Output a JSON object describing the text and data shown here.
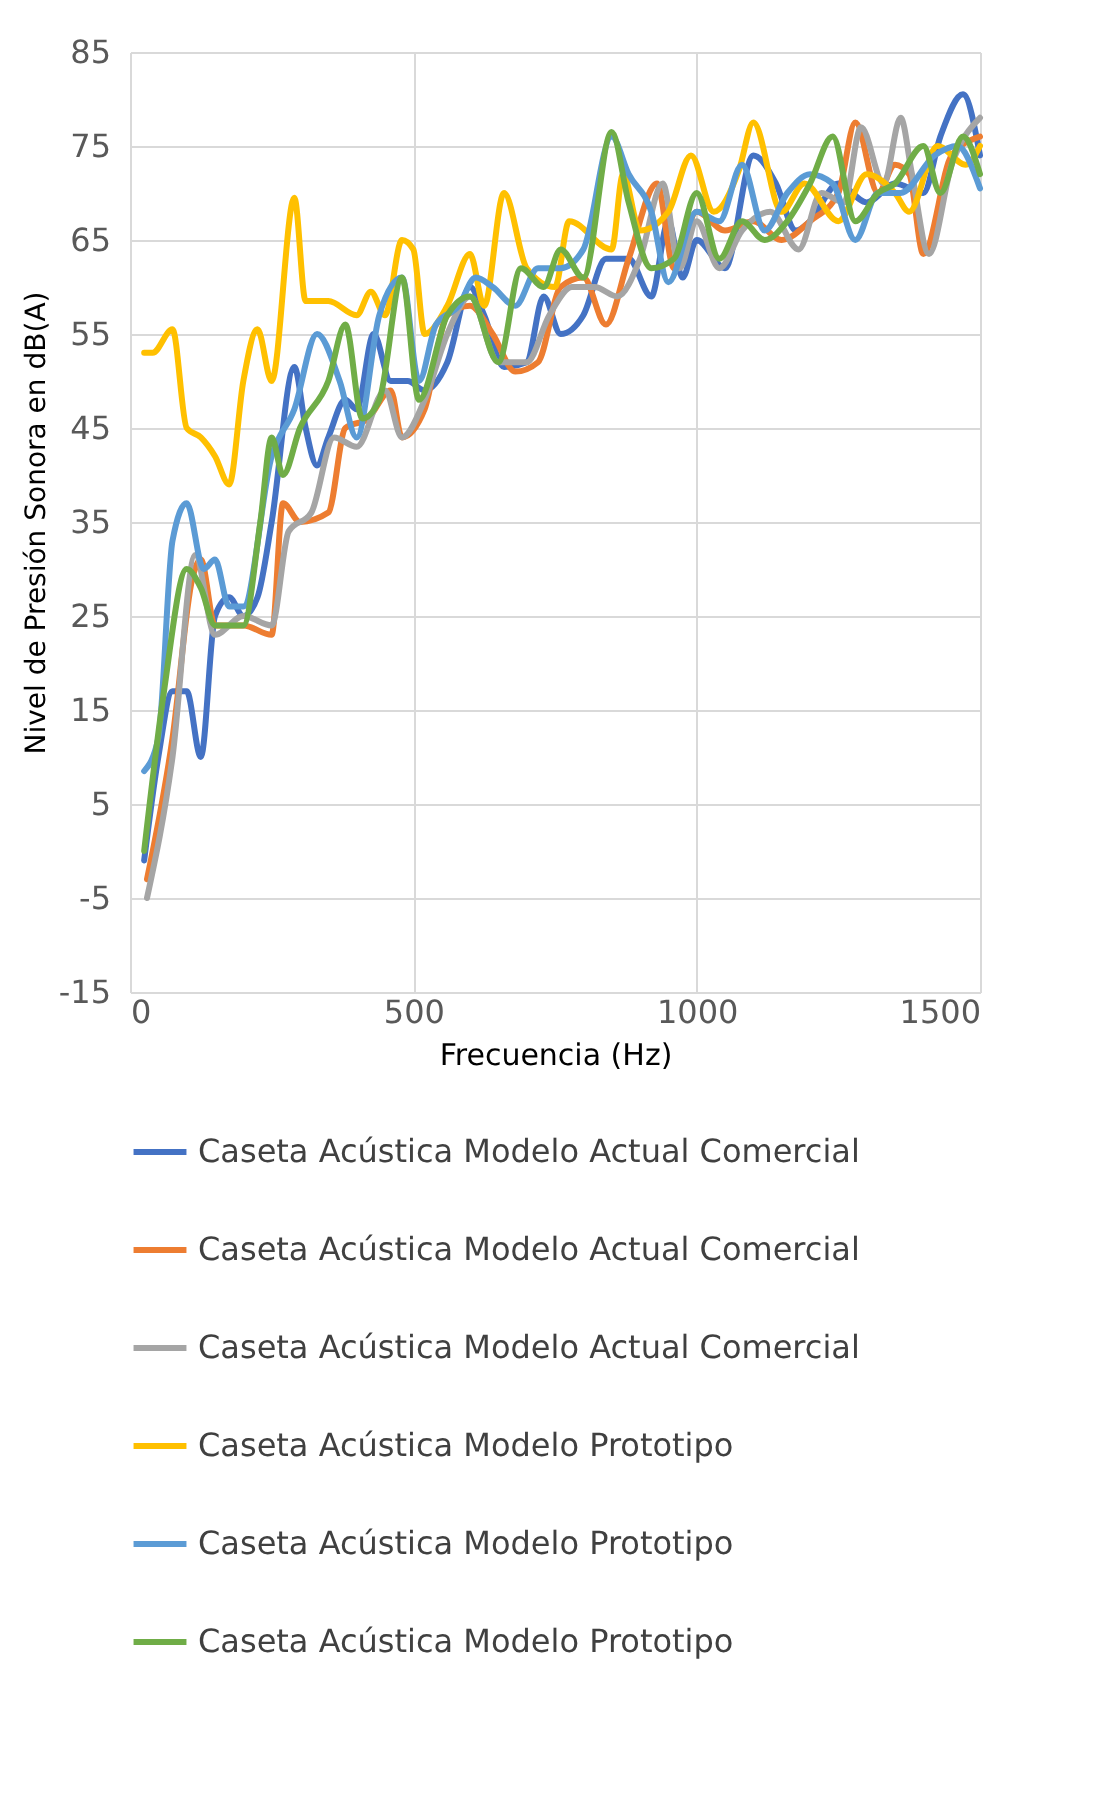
{
  "chart_data": {
    "type": "line",
    "xlabel": "Frecuencia (Hz)",
    "ylabel": "Nivel de Presión Sonora en dB(A)",
    "xlim": [
      0,
      1500
    ],
    "xticks": [
      0,
      500,
      1000,
      1500
    ],
    "ylim": [
      -15,
      85
    ],
    "yticks": [
      -15,
      -5,
      5,
      15,
      25,
      35,
      45,
      55,
      65,
      75,
      85
    ],
    "grid": true,
    "legend": "bottom",
    "marker": "none",
    "line_style": "solid",
    "series": [
      {
        "name": "Caseta Acústica Modelo Actual Comercial",
        "color": "#4472c4",
        "x": [
          25,
          50,
          75,
          100,
          125,
          150,
          175,
          200,
          225,
          250,
          290,
          310,
          330,
          350,
          380,
          400,
          430,
          460,
          490,
          520,
          560,
          600,
          625,
          660,
          700,
          730,
          760,
          800,
          840,
          880,
          920,
          950,
          975,
          1000,
          1050,
          1100,
          1140,
          1175,
          1200,
          1250,
          1300,
          1350,
          1400,
          1430,
          1470,
          1500
        ],
        "values": [
          -1,
          10,
          17,
          17,
          10,
          25,
          27,
          25,
          27,
          35,
          51.5,
          45,
          41,
          44,
          48,
          47,
          55,
          50,
          50,
          49,
          52,
          60,
          57,
          51.5,
          52,
          59,
          55,
          57,
          63,
          63,
          59,
          67,
          61,
          65,
          62,
          74,
          71,
          66,
          67,
          71,
          69,
          71,
          70,
          76,
          80.5,
          74
        ]
      },
      {
        "name": "Caseta Acústica Modelo Actual Comercial",
        "color": "#ed7d31",
        "x": [
          30,
          75,
          110,
          125,
          150,
          200,
          250,
          270,
          300,
          350,
          380,
          420,
          460,
          480,
          520,
          560,
          600,
          640,
          680,
          720,
          760,
          800,
          840,
          880,
          930,
          960,
          1000,
          1050,
          1100,
          1150,
          1200,
          1250,
          1280,
          1320,
          1350,
          1375,
          1400,
          1450,
          1500
        ],
        "values": [
          -3,
          12,
          29,
          31,
          24,
          24,
          23,
          37,
          35,
          36,
          45,
          46,
          49,
          44,
          47,
          57,
          58,
          55,
          51,
          52,
          60,
          61,
          56,
          63,
          71,
          62,
          68,
          66,
          67,
          65,
          67,
          70,
          77.5,
          70,
          73,
          72,
          63.5,
          74,
          76
        ]
      },
      {
        "name": "Caseta Acústica Modelo Actual Comercial",
        "color": "#a5a5a5",
        "x": [
          30,
          75,
          115,
          150,
          200,
          250,
          280,
          320,
          360,
          400,
          450,
          480,
          520,
          560,
          600,
          650,
          700,
          740,
          780,
          820,
          860,
          900,
          940,
          970,
          1000,
          1040,
          1080,
          1130,
          1180,
          1220,
          1260,
          1290,
          1330,
          1360,
          1380,
          1410,
          1450,
          1500
        ],
        "values": [
          -5,
          10,
          31.5,
          23,
          25,
          24,
          34,
          36,
          44,
          43,
          49,
          44,
          48,
          55,
          59,
          52,
          52,
          57,
          60,
          60,
          59,
          63,
          71,
          62,
          67,
          62,
          66,
          68,
          64,
          70,
          69,
          77,
          71,
          78,
          72,
          63.5,
          73,
          78
        ]
      },
      {
        "name": "Caseta Acústica Modelo Prototipo",
        "color": "#ffc000",
        "x": [
          25,
          40,
          75,
          100,
          125,
          150,
          175,
          200,
          225,
          250,
          290,
          310,
          350,
          400,
          425,
          450,
          480,
          500,
          520,
          560,
          600,
          625,
          660,
          700,
          750,
          775,
          850,
          870,
          900,
          950,
          990,
          1030,
          1075,
          1100,
          1150,
          1190,
          1250,
          1300,
          1350,
          1375,
          1425,
          1475,
          1500
        ],
        "values": [
          53,
          53,
          55.5,
          45,
          44,
          42,
          39,
          50,
          55.5,
          50,
          69.5,
          58.5,
          58.5,
          57,
          59.5,
          57,
          65,
          64,
          55,
          58,
          63.5,
          58,
          70,
          62,
          60,
          67,
          64,
          72,
          66,
          68,
          74,
          68,
          72.5,
          77.5,
          68,
          71,
          67,
          72,
          70,
          68,
          75,
          73,
          75
        ]
      },
      {
        "name": "Caseta Acústica Modelo Prototipo",
        "color": "#5b9bd5",
        "x": [
          25,
          50,
          75,
          100,
          130,
          150,
          175,
          200,
          250,
          290,
          330,
          370,
          400,
          440,
          480,
          510,
          540,
          580,
          610,
          640,
          680,
          720,
          760,
          800,
          850,
          880,
          920,
          950,
          1000,
          1040,
          1080,
          1120,
          1160,
          1200,
          1240,
          1280,
          1320,
          1360,
          1420,
          1460,
          1500
        ],
        "values": [
          8.5,
          12,
          33,
          37,
          30,
          31,
          26,
          26,
          42,
          47,
          55,
          50,
          44,
          57,
          61,
          50,
          56,
          58,
          61,
          60,
          58,
          62,
          62,
          64,
          76,
          72,
          68,
          60.5,
          68,
          67,
          73,
          66,
          70,
          72,
          71,
          65,
          70,
          70,
          74,
          75,
          70.5
        ]
      },
      {
        "name": "Caseta Acústica Modelo Prototipo",
        "color": "#70ad47",
        "x": [
          25,
          60,
          100,
          125,
          150,
          200,
          230,
          250,
          270,
          300,
          350,
          380,
          410,
          440,
          480,
          510,
          560,
          600,
          650,
          690,
          730,
          760,
          800,
          850,
          880,
          920,
          960,
          1000,
          1040,
          1080,
          1120,
          1160,
          1200,
          1240,
          1280,
          1320,
          1350,
          1400,
          1430,
          1470,
          1500
        ],
        "values": [
          0,
          17,
          30,
          28,
          24,
          24,
          35,
          44,
          40,
          45,
          50,
          56,
          46,
          48,
          61,
          48,
          57,
          59,
          52,
          62,
          60,
          64,
          61,
          76.5,
          69,
          62,
          63,
          70,
          63,
          67,
          65,
          67,
          71,
          76,
          67,
          70,
          71,
          75,
          70,
          76,
          72
        ]
      }
    ]
  }
}
